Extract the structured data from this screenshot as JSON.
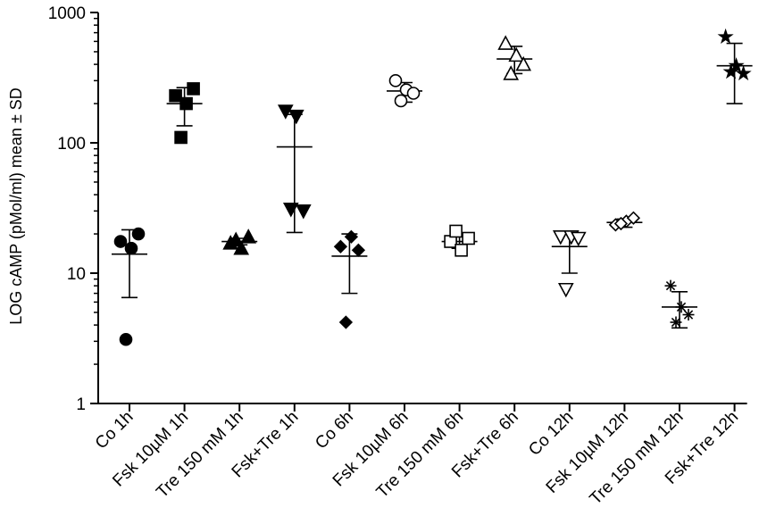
{
  "chart_data": {
    "type": "scatter",
    "title": "",
    "ylabel": "LOG cAMP (pMol/ml) mean ± SD",
    "xlabel": "",
    "yscale": "log",
    "ylim": [
      1,
      1000
    ],
    "yticks": [
      {
        "value": 1,
        "label": "1"
      },
      {
        "value": 10,
        "label": "10"
      },
      {
        "value": 100,
        "label": "100"
      },
      {
        "value": 1000,
        "label": "1000"
      }
    ],
    "grid": false,
    "legend": "none",
    "groups": [
      {
        "label": "Co 1h",
        "marker": "circle",
        "filled": true,
        "points": [
          17.5,
          15.5,
          20,
          3.1
        ],
        "mean": 14,
        "sd_low": 6.5,
        "sd_high": 21.5
      },
      {
        "label": "Fsk 10µM 1h",
        "marker": "square",
        "filled": true,
        "points": [
          230,
          200,
          260,
          110
        ],
        "mean": 200,
        "sd_low": 135,
        "sd_high": 265
      },
      {
        "label": "Tre 150 mM 1h",
        "marker": "triangle-up",
        "filled": true,
        "points": [
          17,
          15.5,
          19,
          18
        ],
        "mean": 17.5,
        "sd_low": 16.5,
        "sd_high": 18.5
      },
      {
        "label": "Fsk+Tre 1h",
        "marker": "triangle-down",
        "filled": true,
        "points": [
          175,
          160,
          30,
          31
        ],
        "mean": 93,
        "sd_low": 20.5,
        "sd_high": 165
      },
      {
        "label": "Co 6h",
        "marker": "diamond",
        "filled": true,
        "points": [
          16,
          19,
          15,
          4.2
        ],
        "mean": 13.5,
        "sd_low": 7,
        "sd_high": 20
      },
      {
        "label": "Fsk 10µM 6h",
        "marker": "circle",
        "filled": false,
        "points": [
          300,
          255,
          240,
          210
        ],
        "mean": 250,
        "sd_low": 205,
        "sd_high": 290
      },
      {
        "label": "Tre 150 mM 6h",
        "marker": "square",
        "filled": false,
        "points": [
          17.5,
          15,
          18.5,
          21
        ],
        "mean": 17.5,
        "sd_low": 15.5,
        "sd_high": 19.5
      },
      {
        "label": "Fsk+Tre 6h",
        "marker": "triangle-up",
        "filled": false,
        "points": [
          580,
          470,
          400,
          340
        ],
        "mean": 440,
        "sd_low": 340,
        "sd_high": 550
      },
      {
        "label": "Co 12h",
        "marker": "triangle-down",
        "filled": false,
        "points": [
          19,
          19,
          18.5,
          7.5
        ],
        "mean": 16,
        "sd_low": 10,
        "sd_high": 21
      },
      {
        "label": "Fsk 10µM 12h",
        "marker": "diamond",
        "filled": false,
        "points": [
          23.5,
          25,
          26.5,
          24
        ],
        "mean": 24.5,
        "sd_low": 22.5,
        "sd_high": 26
      },
      {
        "label": "Tre 150 mM 12h",
        "marker": "asterisk",
        "filled": true,
        "points": [
          8,
          5.5,
          4.8,
          4.2
        ],
        "mean": 5.5,
        "sd_low": 3.8,
        "sd_high": 7.2
      },
      {
        "label": "Fsk+Tre 12h",
        "marker": "star",
        "filled": true,
        "points": [
          650,
          390,
          340,
          350
        ],
        "mean": 390,
        "sd_low": 200,
        "sd_high": 580
      }
    ]
  }
}
